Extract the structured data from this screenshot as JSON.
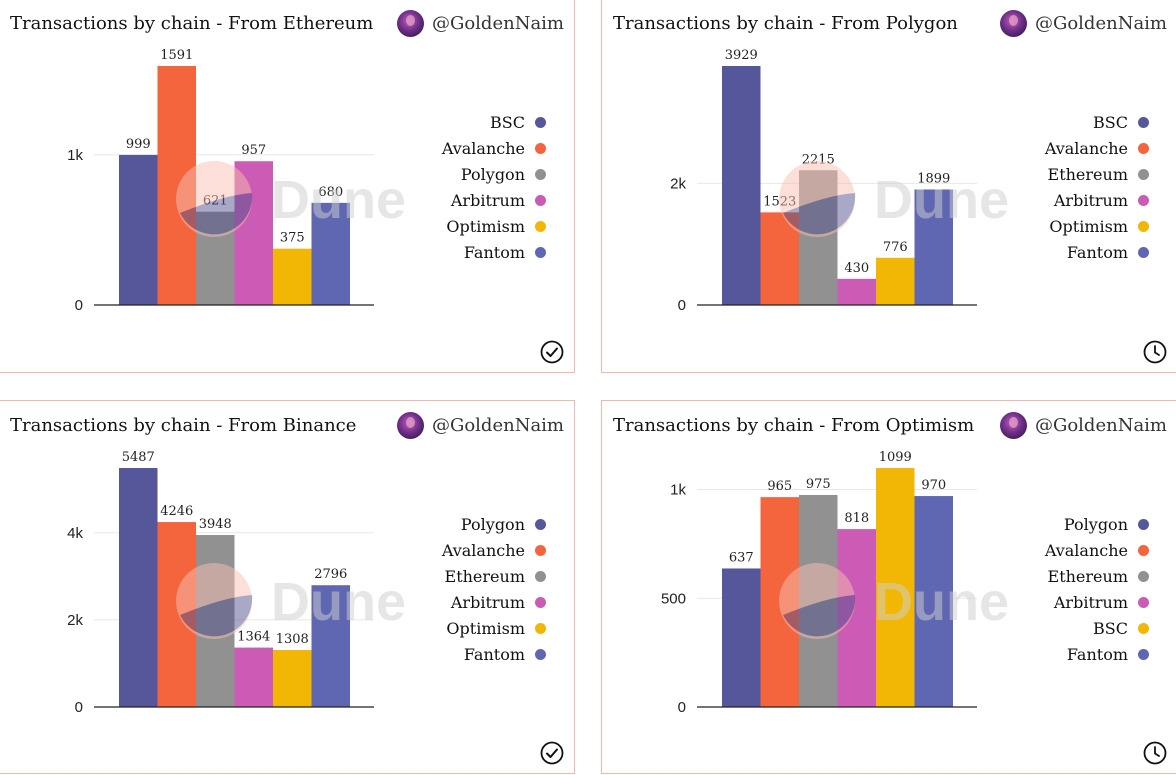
{
  "handle": "@GoldenNaim",
  "watermark": "Dune",
  "charts": [
    {
      "title": "Transactions by chain - From Ethereum",
      "status_icon": "check-circle-icon",
      "legend": [
        "BSC",
        "Avalanche",
        "Polygon",
        "Arbitrum",
        "Optimism",
        "Fantom"
      ],
      "ticks": [
        {
          "v": 0,
          "label": "0"
        },
        {
          "v": 1000,
          "label": "1k"
        }
      ]
    },
    {
      "title": "Transactions by chain - From Polygon",
      "status_icon": "clock-icon",
      "legend": [
        "BSC",
        "Avalanche",
        "Ethereum",
        "Arbitrum",
        "Optimism",
        "Fantom"
      ],
      "ticks": [
        {
          "v": 0,
          "label": "0"
        },
        {
          "v": 2000,
          "label": "2k"
        }
      ]
    },
    {
      "title": "Transactions by chain - From Binance",
      "status_icon": "check-circle-icon",
      "legend": [
        "Polygon",
        "Avalanche",
        "Ethereum",
        "Arbitrum",
        "Optimism",
        "Fantom"
      ],
      "ticks": [
        {
          "v": 0,
          "label": "0"
        },
        {
          "v": 2000,
          "label": "2k"
        },
        {
          "v": 4000,
          "label": "4k"
        }
      ]
    },
    {
      "title": "Transactions by chain - From Optimism",
      "status_icon": "clock-icon",
      "legend": [
        "Polygon",
        "Avalanche",
        "Ethereum",
        "Arbitrum",
        "BSC",
        "Fantom"
      ],
      "ticks": [
        {
          "v": 0,
          "label": "0"
        },
        {
          "v": 500,
          "label": "500"
        },
        {
          "v": 1000,
          "label": "1k"
        }
      ]
    }
  ],
  "chart_data": [
    {
      "type": "bar",
      "title": "Transactions by chain - From Ethereum",
      "categories": [
        "BSC",
        "Avalanche",
        "Polygon",
        "Arbitrum",
        "Optimism",
        "Fantom"
      ],
      "values": [
        999,
        1591,
        621,
        957,
        375,
        680
      ],
      "colors": [
        "#56569b",
        "#f4643d",
        "#919191",
        "#cb5bb4",
        "#f2b705",
        "#5f67b2"
      ],
      "ylim": [
        0,
        1591
      ],
      "legend_position": "right",
      "grid": true
    },
    {
      "type": "bar",
      "title": "Transactions by chain - From Polygon",
      "categories": [
        "BSC",
        "Avalanche",
        "Ethereum",
        "Arbitrum",
        "Optimism",
        "Fantom"
      ],
      "values": [
        3929,
        1523,
        2215,
        430,
        776,
        1899
      ],
      "colors": [
        "#56569b",
        "#f4643d",
        "#919191",
        "#cb5bb4",
        "#f2b705",
        "#5f67b2"
      ],
      "ylim": [
        0,
        3929
      ],
      "legend_position": "right",
      "grid": true
    },
    {
      "type": "bar",
      "title": "Transactions by chain - From Binance",
      "categories": [
        "Polygon",
        "Avalanche",
        "Ethereum",
        "Arbitrum",
        "Optimism",
        "Fantom"
      ],
      "values": [
        5487,
        4246,
        3948,
        1364,
        1308,
        2796
      ],
      "colors": [
        "#56569b",
        "#f4643d",
        "#919191",
        "#cb5bb4",
        "#f2b705",
        "#5f67b2"
      ],
      "ylim": [
        0,
        5487
      ],
      "legend_position": "right",
      "grid": true
    },
    {
      "type": "bar",
      "title": "Transactions by chain - From Optimism",
      "categories": [
        "Polygon",
        "Avalanche",
        "Ethereum",
        "Arbitrum",
        "BSC",
        "Fantom"
      ],
      "values": [
        637,
        965,
        975,
        818,
        1099,
        970
      ],
      "colors": [
        "#56569b",
        "#f4643d",
        "#919191",
        "#cb5bb4",
        "#f2b705",
        "#5f67b2"
      ],
      "ylim": [
        0,
        1099
      ],
      "legend_position": "right",
      "grid": true
    }
  ]
}
